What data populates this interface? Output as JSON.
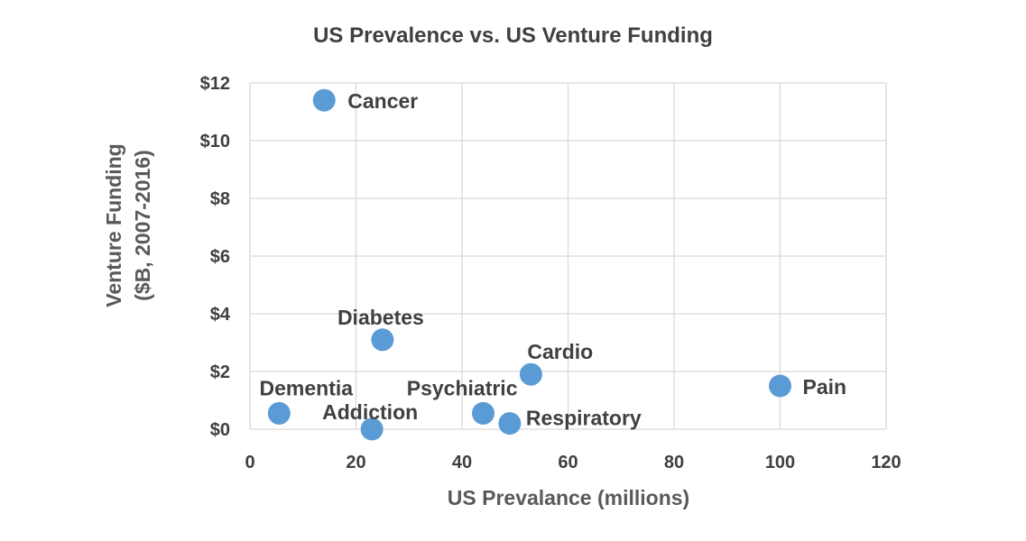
{
  "chart_data": {
    "type": "scatter",
    "title": "US Prevalence vs. US Venture Funding",
    "xlabel": "US Prevalance (millions)",
    "ylabel_lines": [
      "Venture Funding",
      "($B, 2007-2016)"
    ],
    "xlim": [
      0,
      120
    ],
    "ylim": [
      0,
      12
    ],
    "x_ticks": [
      0,
      20,
      40,
      60,
      80,
      100,
      120
    ],
    "x_tick_labels": [
      "0",
      "20",
      "40",
      "60",
      "80",
      "100",
      "120"
    ],
    "y_ticks": [
      0,
      2,
      4,
      6,
      8,
      10,
      12
    ],
    "y_tick_labels": [
      "$0",
      "$2",
      "$4",
      "$6",
      "$8",
      "$10",
      "$12"
    ],
    "grid": true,
    "marker_color": "#5b9bd5",
    "points": [
      {
        "label": "Cancer",
        "x": 14,
        "y": 11.4
      },
      {
        "label": "Diabetes",
        "x": 25,
        "y": 3.1
      },
      {
        "label": "Cardio",
        "x": 53,
        "y": 1.9
      },
      {
        "label": "Pain",
        "x": 100,
        "y": 1.5
      },
      {
        "label": "Dementia",
        "x": 5.5,
        "y": 0.55
      },
      {
        "label": "Psychiatric",
        "x": 44,
        "y": 0.55
      },
      {
        "label": "Addiction",
        "x": 23,
        "y": 0.0
      },
      {
        "label": "Respiratory",
        "x": 49,
        "y": 0.2
      }
    ]
  }
}
